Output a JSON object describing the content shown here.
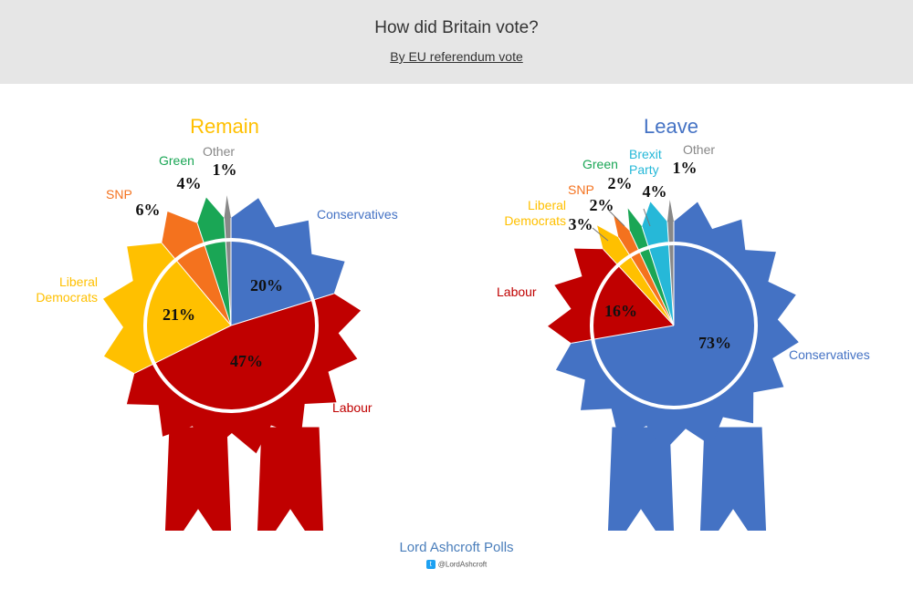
{
  "header": {
    "title": "How did Britain vote?",
    "subtitle": "By EU referendum vote"
  },
  "footer": {
    "brand": "Lord Ashcroft Polls",
    "twitter_icon": "twitter-icon",
    "handle": "@LordAshcroft"
  },
  "colors": {
    "Conservatives": "#4472c4",
    "Labour": "#c00000",
    "Liberal Democrats": "#ffc000",
    "SNP": "#f4721e",
    "Green": "#1aa655",
    "Brexit Party": "#26b8d8",
    "Other": "#888888",
    "remain_title": "#ffc000",
    "leave_title": "#4472c4"
  },
  "chart_data": [
    {
      "type": "pie",
      "title": "Remain",
      "ribbon_color": "#c00000",
      "labels": [
        "Conservatives",
        "Labour",
        "Liberal Democrats",
        "SNP",
        "Green",
        "Other"
      ],
      "display_labels": [
        "Conservatives",
        "Labour",
        "Liberal\nDemocrats",
        "SNP",
        "Green",
        "Other"
      ],
      "values": [
        20,
        47,
        21,
        6,
        4,
        1
      ],
      "value_labels": [
        "20%",
        "47%",
        "21%",
        "6%",
        "4%",
        "1%"
      ]
    },
    {
      "type": "pie",
      "title": "Leave",
      "ribbon_color": "#4472c4",
      "labels": [
        "Conservatives",
        "Labour",
        "Liberal Democrats",
        "SNP",
        "Green",
        "Brexit Party",
        "Other"
      ],
      "display_labels": [
        "Conservatives",
        "Labour",
        "Liberal\nDemocrats",
        "SNP",
        "Green",
        "Brexit\nParty",
        "Other"
      ],
      "values": [
        73,
        16,
        3,
        2,
        2,
        4,
        1
      ],
      "value_labels": [
        "73%",
        "16%",
        "3%",
        "2%",
        "2%",
        "4%",
        "1%"
      ]
    }
  ]
}
